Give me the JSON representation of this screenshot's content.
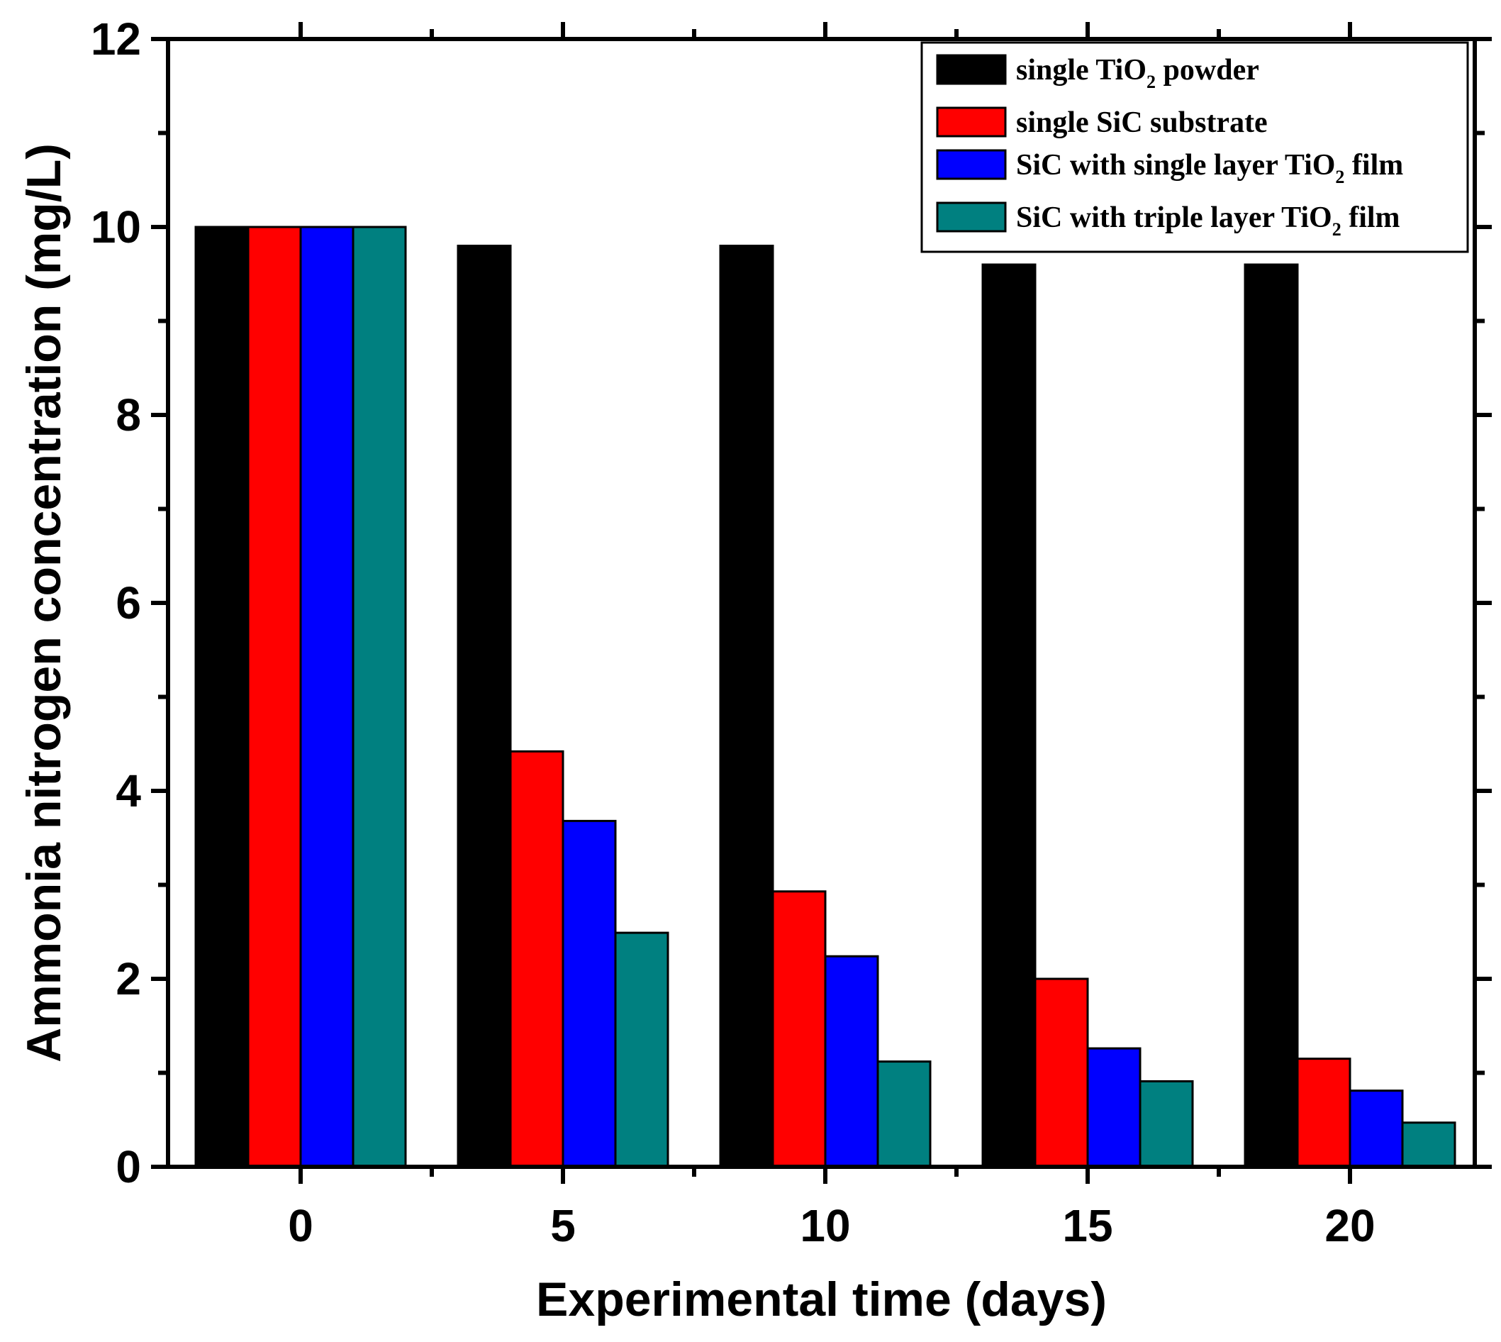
{
  "chart_data": {
    "type": "bar",
    "title": "",
    "xlabel": "Experimental time (days)",
    "ylabel": "Ammonia nitrogen concentration (mg/L)",
    "categories": [
      "0",
      "5",
      "10",
      "15",
      "20"
    ],
    "ylim": [
      0,
      12
    ],
    "yticks": [
      0,
      2,
      4,
      6,
      8,
      10,
      12
    ],
    "legend_position": "top-right",
    "series": [
      {
        "name": "single TiO2 powder",
        "legend": {
          "pre": "single TiO",
          "sub": "2",
          "post": " powder"
        },
        "color": "#000000",
        "values": [
          10.0,
          9.8,
          9.8,
          9.6,
          9.6
        ]
      },
      {
        "name": "single SiC substrate",
        "legend": {
          "pre": "single SiC substrate",
          "sub": "",
          "post": ""
        },
        "color": "#ff0000",
        "values": [
          10.0,
          4.42,
          2.93,
          2.0,
          1.15
        ]
      },
      {
        "name": "SiC with single layer TiO2 film",
        "legend": {
          "pre": "SiC with single layer TiO",
          "sub": "2",
          "post": " film"
        },
        "color": "#0000ff",
        "values": [
          10.0,
          3.68,
          2.24,
          1.26,
          0.81
        ]
      },
      {
        "name": "SiC with triple layer TiO2 film",
        "legend": {
          "pre": "SiC with triple layer TiO",
          "sub": "2",
          "post": " film"
        },
        "color": "#008080",
        "values": [
          10.0,
          2.49,
          1.12,
          0.91,
          0.47
        ]
      }
    ]
  }
}
